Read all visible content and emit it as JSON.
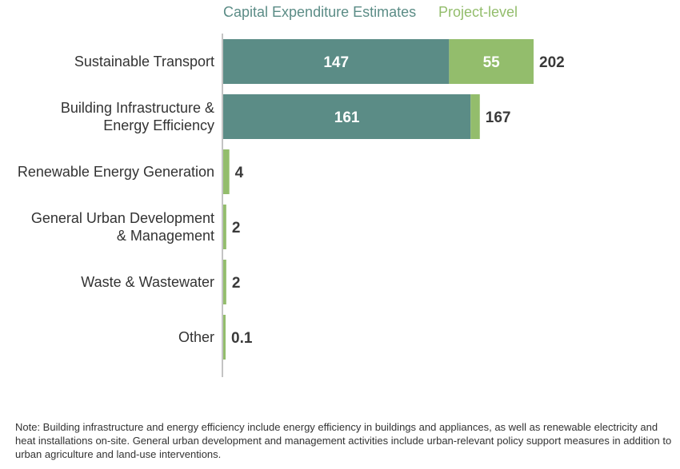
{
  "chart_data": {
    "type": "bar",
    "orientation": "horizontal",
    "stacked": true,
    "categories": [
      [
        "Sustainable Transport"
      ],
      [
        "Building Infrastructure &",
        "Energy Efficiency"
      ],
      [
        "Renewable Energy Generation"
      ],
      [
        "General Urban Development",
        "& Management"
      ],
      [
        "Waste & Wastewater"
      ],
      [
        "Other"
      ]
    ],
    "series": [
      {
        "name": "Capital Expenditure Estimates",
        "color": "#5b8c86",
        "values": [
          147,
          161,
          0,
          0,
          0,
          0
        ],
        "labels": [
          "147",
          "161",
          "",
          "",
          "",
          ""
        ]
      },
      {
        "name": "Project-level",
        "color": "#93bd6c",
        "values": [
          55,
          6,
          4,
          2,
          2,
          0.1
        ],
        "labels": [
          "55",
          "",
          "",
          "",
          "",
          ""
        ]
      }
    ],
    "totals": [
      "202",
      "167",
      "4",
      "2",
      "2",
      "0.1"
    ],
    "grid": false,
    "legend_position": "top"
  },
  "note": "Note: Building infrastructure and energy efficiency include energy efficiency in buildings and appliances, as well as renewable electricity and heat installations on-site. General urban development and management activities include urban-relevant policy support measures in addition to urban agriculture and land-use interventions."
}
